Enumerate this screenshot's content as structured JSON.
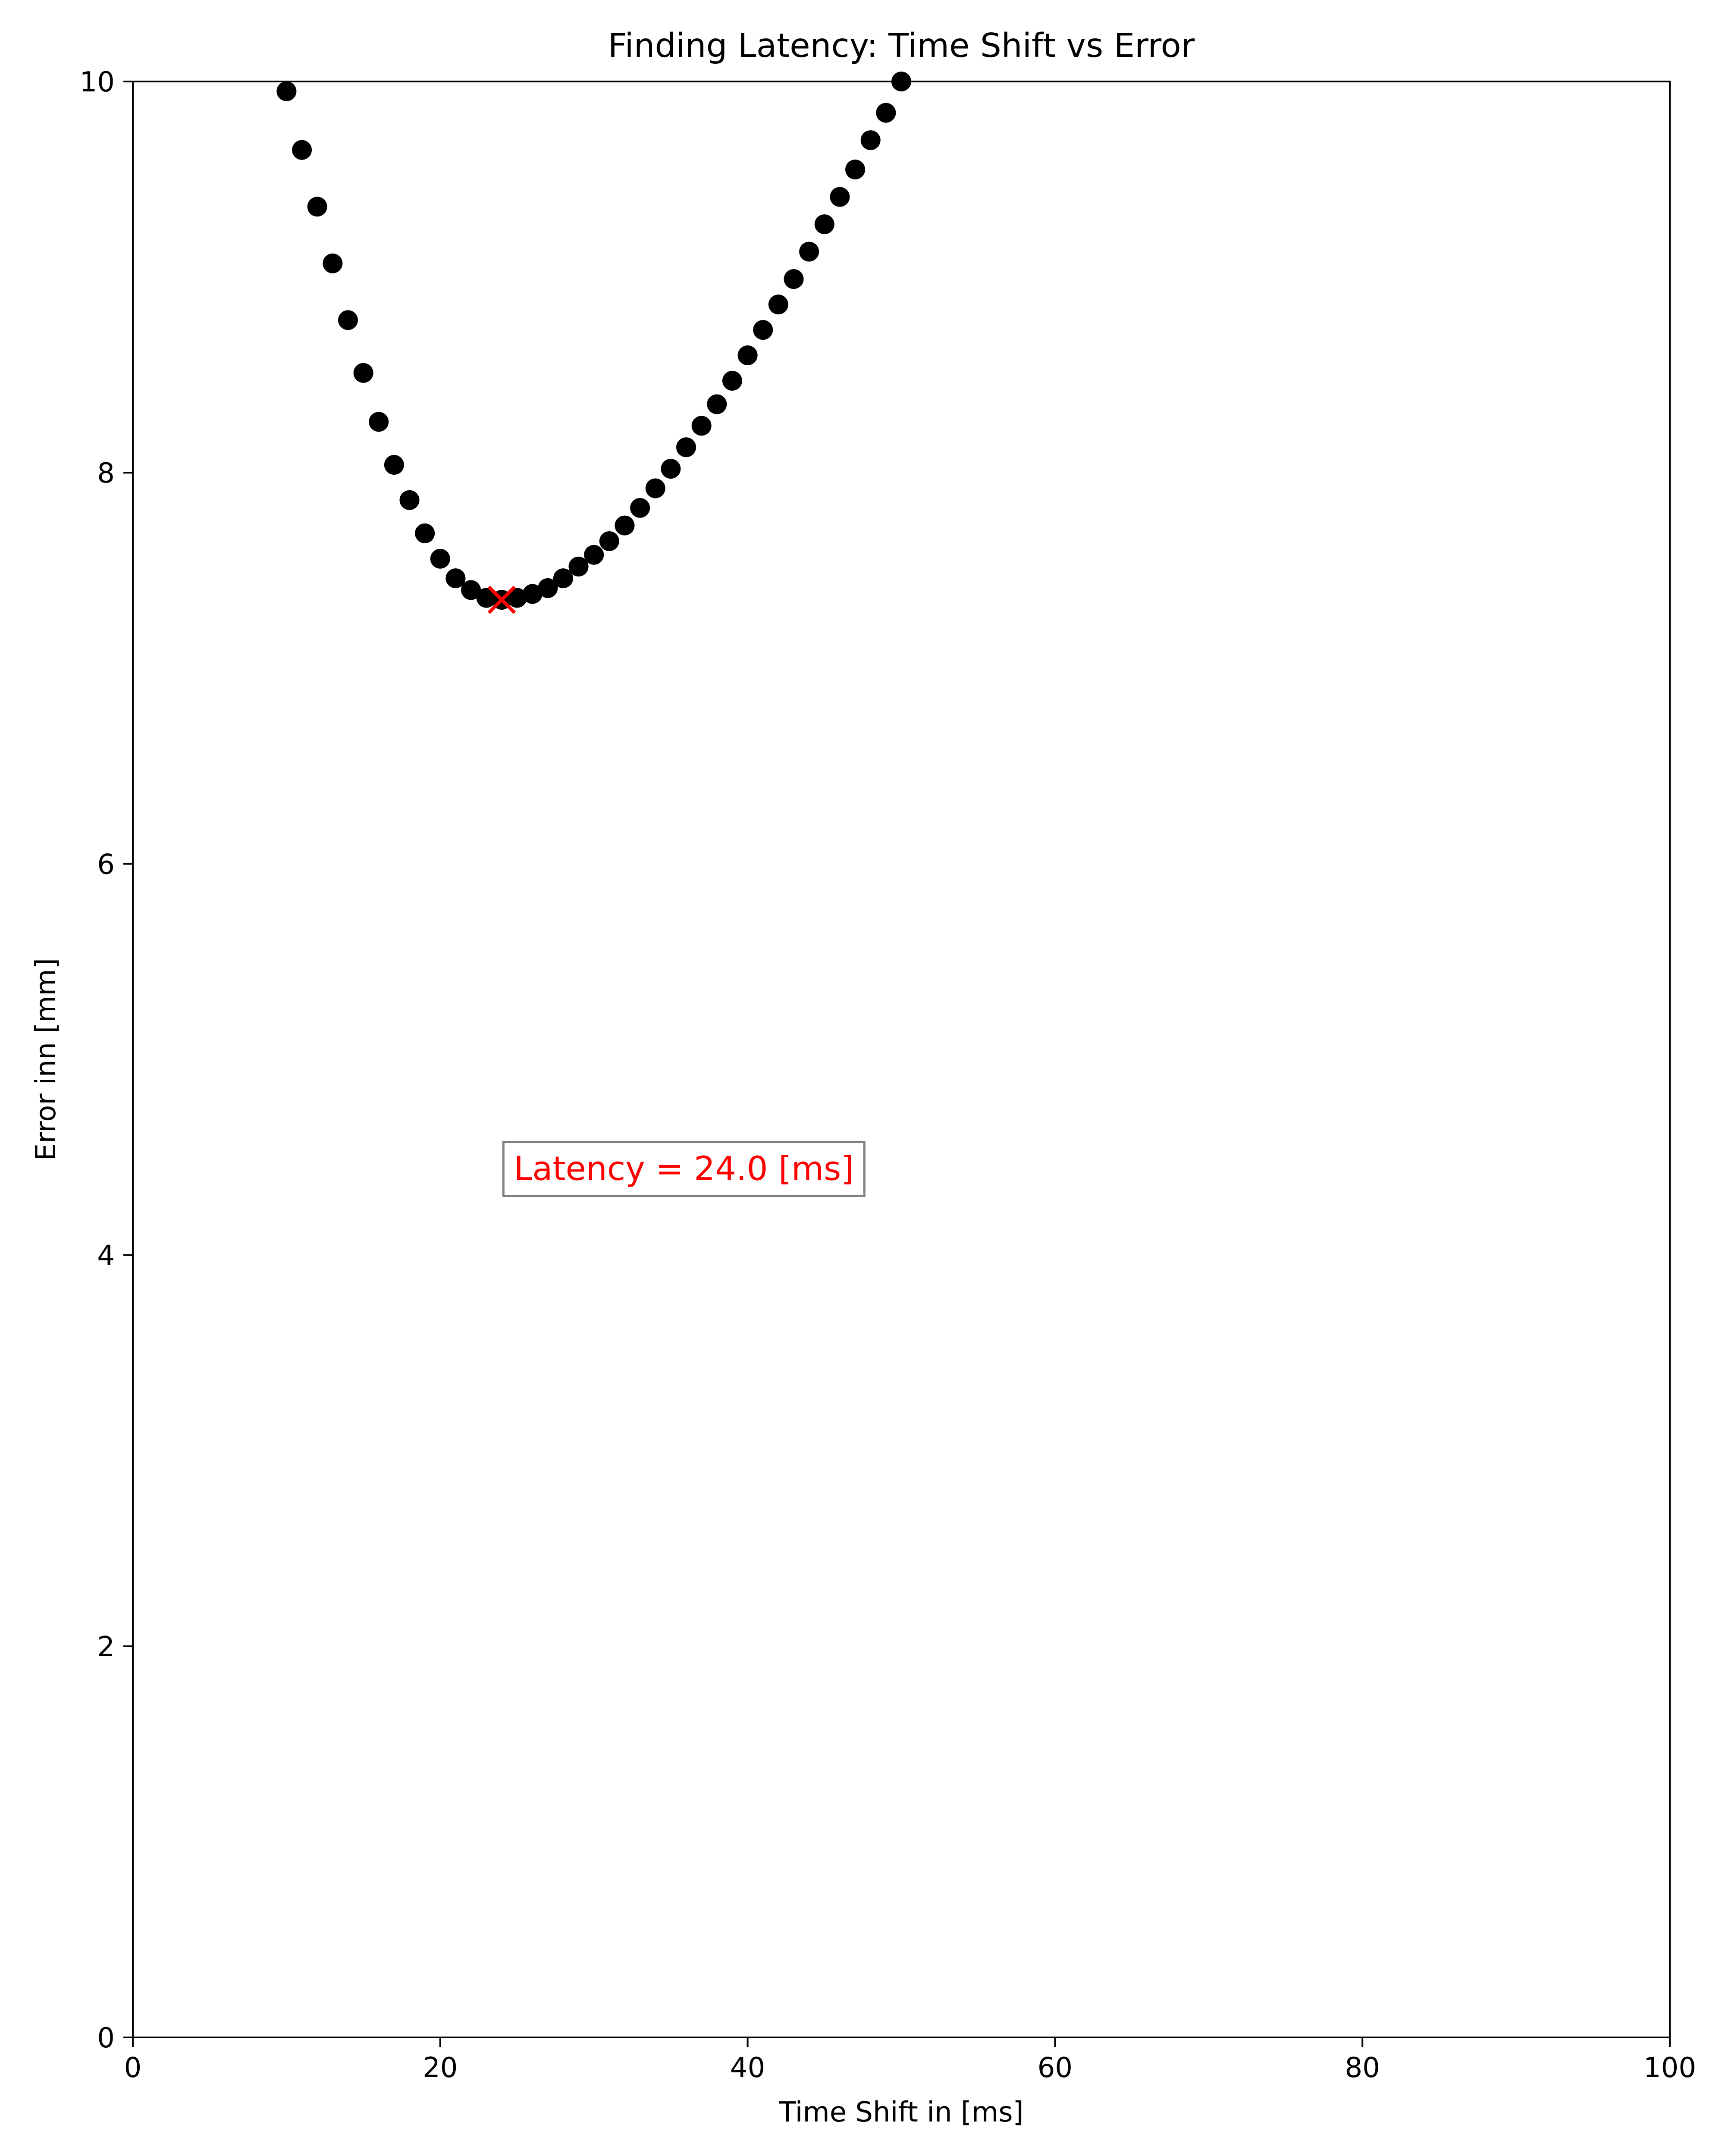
{
  "chart_data": {
    "type": "scatter",
    "title": "Finding Latency: Time Shift vs Error",
    "xlabel": "Time Shift in [ms]",
    "ylabel": "Error inn [mm]",
    "xlim": [
      0,
      100
    ],
    "ylim": [
      0,
      10
    ],
    "xticks": [
      0,
      20,
      40,
      60,
      80,
      100
    ],
    "yticks": [
      0,
      2,
      4,
      6,
      8,
      10
    ],
    "xtick_labels": [
      "0",
      "20",
      "40",
      "60",
      "80",
      "100"
    ],
    "ytick_labels": [
      "0",
      "2",
      "4",
      "6",
      "8",
      "10"
    ],
    "grid": false,
    "series": [
      {
        "marker": "circle",
        "color": "#000000",
        "x": [
          10,
          11,
          12,
          13,
          14,
          15,
          16,
          17,
          18,
          19,
          20,
          21,
          22,
          23,
          24,
          25,
          26,
          27,
          28,
          29,
          30,
          31,
          32,
          33,
          34,
          35,
          36,
          37,
          38,
          39,
          40,
          41,
          42,
          43,
          44,
          45,
          46,
          47,
          48,
          49,
          50
        ],
        "y": [
          9.95,
          9.65,
          9.36,
          9.07,
          8.78,
          8.51,
          8.26,
          8.04,
          7.86,
          7.69,
          7.56,
          7.46,
          7.4,
          7.36,
          7.35,
          7.36,
          7.38,
          7.41,
          7.46,
          7.52,
          7.58,
          7.65,
          7.73,
          7.82,
          7.92,
          8.02,
          8.13,
          8.24,
          8.35,
          8.47,
          8.6,
          8.73,
          8.86,
          8.99,
          9.13,
          9.27,
          9.41,
          9.55,
          9.7,
          9.84,
          10.0
        ]
      }
    ],
    "minimum_marker": {
      "x": 24.0,
      "y": 7.35,
      "marker": "x",
      "color": "#ff0000"
    },
    "annotation": {
      "text": "Latency = 24.0 [ms]",
      "x": 24.0,
      "y": 4.45,
      "color": "#ff0000"
    }
  }
}
